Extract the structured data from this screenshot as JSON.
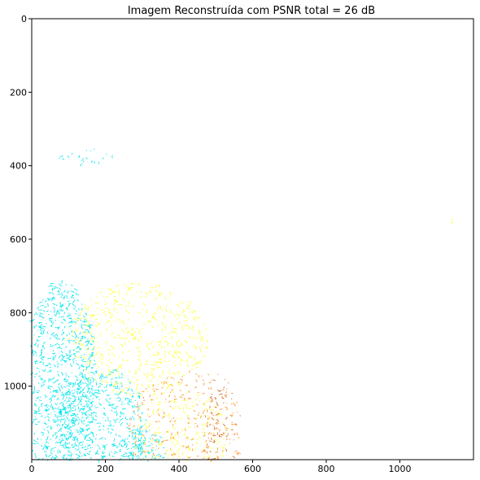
{
  "figure": {
    "title": "Imagem Reconstruída com PSNR total = 26 dB"
  },
  "image_axes": {
    "x_ticks": [
      0,
      200,
      400,
      600,
      800,
      1000
    ],
    "y_ticks": [
      0,
      200,
      400,
      600,
      800,
      1000
    ],
    "x_range": [
      0,
      1200
    ],
    "y_range": [
      0,
      1200
    ],
    "y_inverted": true
  },
  "colors": {
    "cyan_edges": "#00e5ee",
    "yellow_edges": "#ffff33",
    "orange_edges": "#ff8c1a",
    "red_edges": "#d2691e",
    "background": "#ffffff"
  }
}
